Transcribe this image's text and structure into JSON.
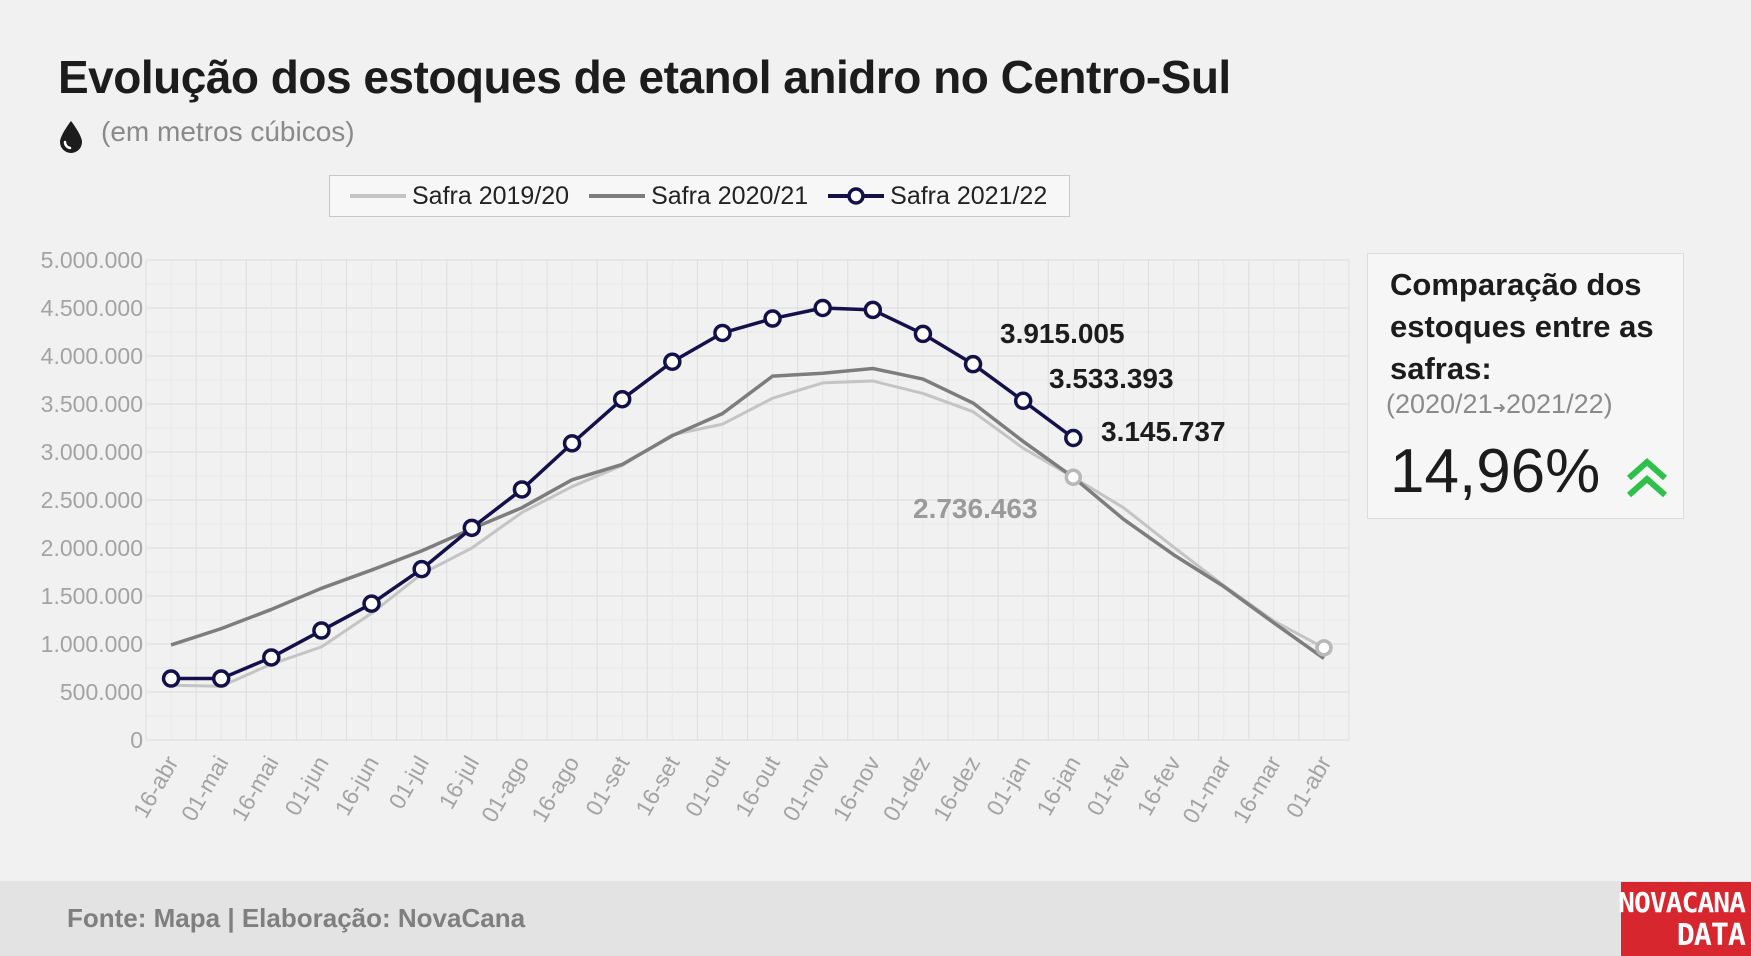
{
  "header": {
    "title": "Evolução dos estoques de etanol anidro no Centro-Sul",
    "subtitle": "(em metros cúbicos)",
    "unit_icon": "drop-icon"
  },
  "legend": {
    "items": [
      {
        "label": "Safra 2019/20",
        "color": "#c4c4c4",
        "marker": false
      },
      {
        "label": "Safra 2020/21",
        "color": "#7d7d7d",
        "marker": false
      },
      {
        "label": "Safra 2021/22",
        "color": "#14114a",
        "marker": true
      }
    ]
  },
  "chart_data": {
    "type": "line",
    "title": "Evolução dos estoques de etanol anidro no Centro-Sul",
    "ylabel": "",
    "xlabel": "",
    "ylim": [
      0,
      5000000
    ],
    "y_ticks": [
      "0",
      "500.000",
      "1.000.000",
      "1.500.000",
      "2.000.000",
      "2.500.000",
      "3.000.000",
      "3.500.000",
      "4.000.000",
      "4.500.000",
      "5.000.000"
    ],
    "categories": [
      "16-abr",
      "01-mai",
      "16-mai",
      "01-jun",
      "16-jun",
      "01-jul",
      "16-jul",
      "01-ago",
      "16-ago",
      "01-set",
      "16-set",
      "01-out",
      "16-out",
      "01-nov",
      "16-nov",
      "01-dez",
      "16-dez",
      "01-jan",
      "16-jan",
      "01-fev",
      "16-fev",
      "01-mar",
      "16-mar",
      "01-abr"
    ],
    "grid": true,
    "legend_position": "top",
    "series": [
      {
        "name": "Safra 2019/20",
        "color": "#c4c4c4",
        "values": [
          570000,
          560000,
          790000,
          970000,
          1320000,
          1730000,
          2000000,
          2370000,
          2640000,
          2860000,
          3180000,
          3290000,
          3560000,
          3720000,
          3740000,
          3610000,
          3420000,
          3040000,
          2736463,
          2420000,
          2010000,
          1610000,
          1240000,
          960000
        ]
      },
      {
        "name": "Safra 2020/21",
        "color": "#7d7d7d",
        "values": [
          990000,
          1160000,
          1360000,
          1580000,
          1770000,
          1970000,
          2200000,
          2420000,
          2710000,
          2870000,
          3170000,
          3400000,
          3790000,
          3820000,
          3870000,
          3760000,
          3510000,
          3110000,
          2736463,
          2300000,
          1930000,
          1600000,
          1220000,
          850000
        ]
      },
      {
        "name": "Safra 2021/22",
        "color": "#14114a",
        "values": [
          640000,
          640000,
          860000,
          1140000,
          1420000,
          1780000,
          2210000,
          2610000,
          3090000,
          3550000,
          3940000,
          4240000,
          4390000,
          4500000,
          4480000,
          4230000,
          3915005,
          3533393,
          3145737,
          null,
          null,
          null,
          null,
          null
        ]
      }
    ],
    "annotations": [
      {
        "text": "3.915.005",
        "color": "#1c1c1c"
      },
      {
        "text": "3.533.393",
        "color": "#1c1c1c"
      },
      {
        "text": "3.145.737",
        "color": "#1c1c1c"
      },
      {
        "text": "2.736.463",
        "color": "#9a9a9a"
      }
    ]
  },
  "comparison": {
    "title": "Comparação dos estoques entre as safras:",
    "from": "(2020/21",
    "to": "2021/22)",
    "value": "14,96%",
    "trend_icon": "double-chevron-up-icon",
    "trend_color": "#2ec04a"
  },
  "footer": {
    "source": "Fonte: Mapa | Elaboração: NovaCana",
    "logo_line1": "NOVACANA",
    "logo_line2": "DATA",
    "logo_color": "#d7262e"
  }
}
